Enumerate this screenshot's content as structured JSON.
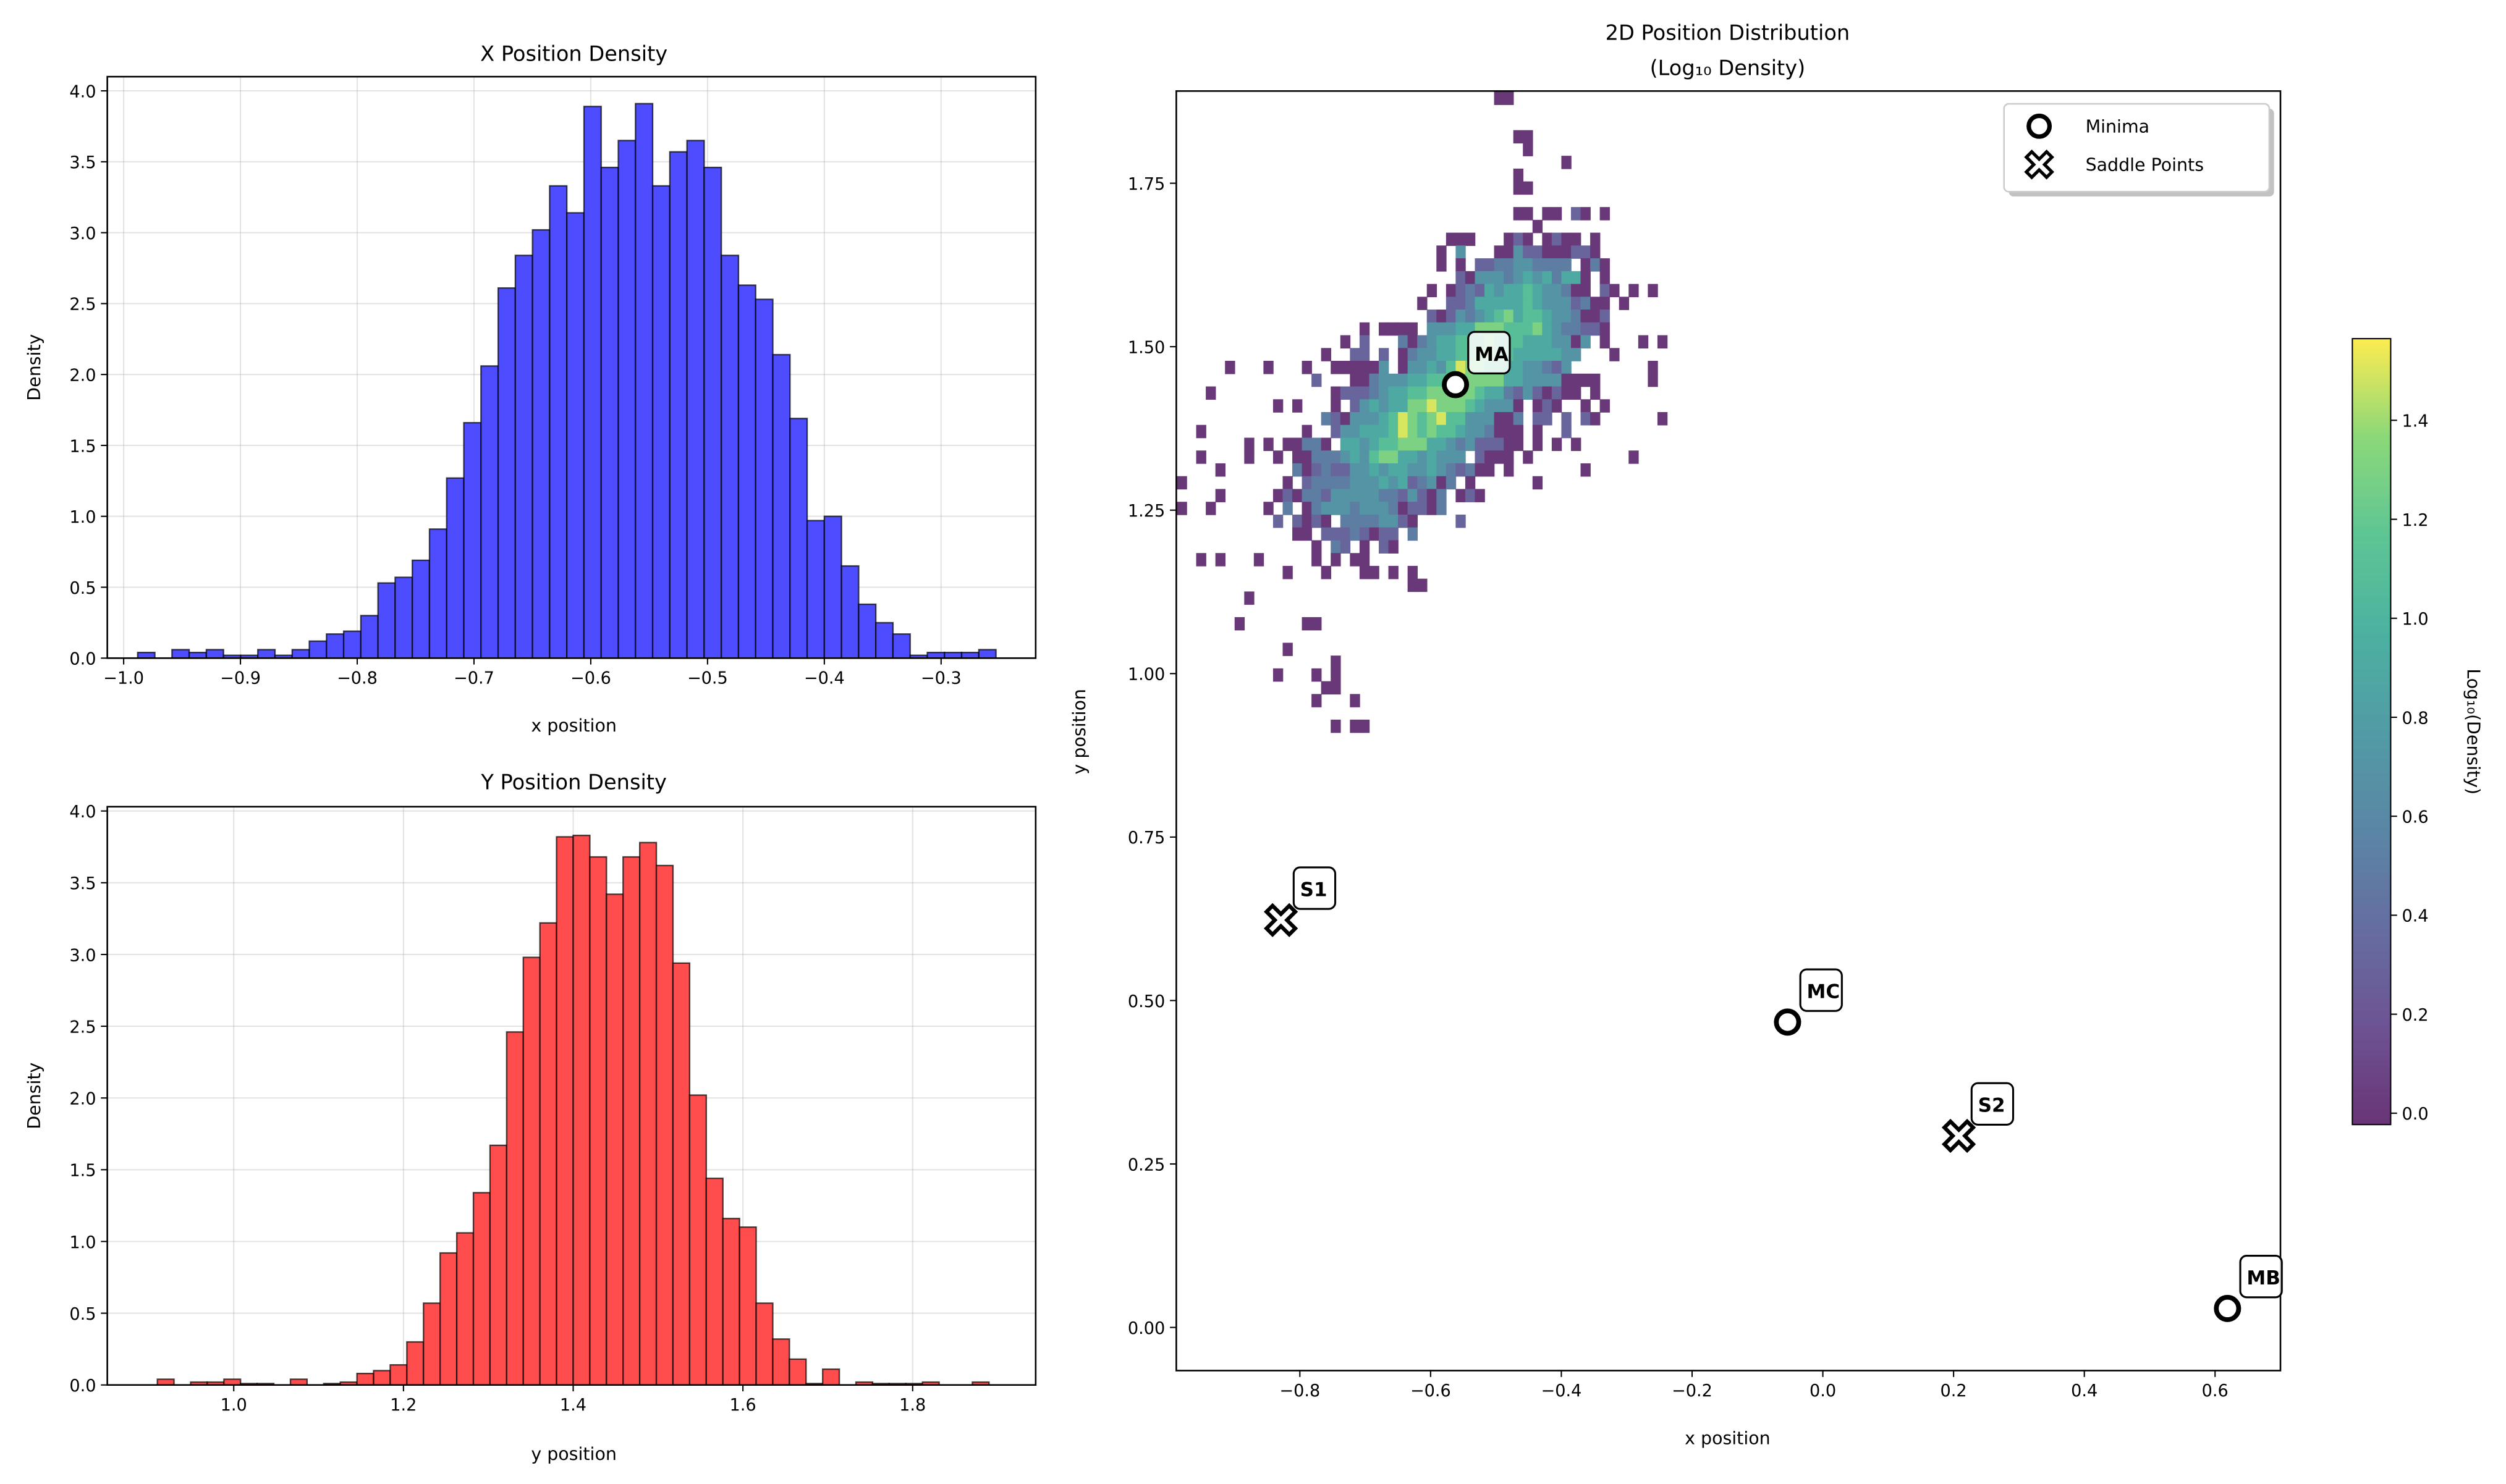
{
  "chart_data": [
    {
      "type": "bar",
      "title": "X Position Density",
      "xlabel": "x position",
      "ylabel": "Density",
      "xlim": [
        -1.014,
        -0.219
      ],
      "ylim": [
        0,
        4.1
      ],
      "grid": true,
      "color": "#0000ff",
      "bin_range": [
        -0.988,
        -0.253
      ],
      "values": [
        0.04,
        0,
        0.06,
        0.04,
        0.06,
        0.02,
        0.02,
        0.06,
        0.02,
        0.06,
        0.12,
        0.17,
        0.19,
        0.3,
        0.53,
        0.57,
        0.69,
        0.91,
        1.27,
        1.66,
        2.06,
        2.61,
        2.84,
        3.02,
        3.33,
        3.14,
        3.89,
        3.46,
        3.65,
        3.91,
        3.33,
        3.57,
        3.65,
        3.46,
        2.84,
        2.63,
        2.53,
        2.14,
        1.69,
        0.97,
        1.0,
        0.65,
        0.38,
        0.25,
        0.17,
        0.02,
        0.04,
        0.04,
        0.04,
        0.06
      ],
      "xticks": [
        -1.0,
        -0.9,
        -0.8,
        -0.7,
        -0.6,
        -0.5,
        -0.4,
        -0.3
      ],
      "xtick_labels": [
        "−1.0",
        "−0.9",
        "−0.8",
        "−0.7",
        "−0.6",
        "−0.5",
        "−0.4",
        "−0.3"
      ],
      "yticks": [
        0,
        0.5,
        1,
        1.5,
        2,
        2.5,
        3,
        3.5,
        4
      ],
      "ytick_labels": [
        "0.0",
        "0.5",
        "1.0",
        "1.5",
        "2.0",
        "2.5",
        "3.0",
        "3.5",
        "4.0"
      ]
    },
    {
      "type": "bar",
      "title": "Y Position Density",
      "xlabel": "y position",
      "ylabel": "Density",
      "xlim": [
        0.851,
        1.945
      ],
      "ylim": [
        0,
        4.03
      ],
      "grid": true,
      "color": "#ff0000",
      "bin_range": [
        0.91,
        1.89
      ],
      "values": [
        0.04,
        0,
        0.02,
        0.02,
        0.04,
        0.01,
        0.01,
        0,
        0.04,
        0,
        0.01,
        0.02,
        0.08,
        0.1,
        0.14,
        0.3,
        0.57,
        0.92,
        1.06,
        1.34,
        1.67,
        2.46,
        2.98,
        3.22,
        3.82,
        3.83,
        3.68,
        3.42,
        3.68,
        3.78,
        3.62,
        2.94,
        2.02,
        1.44,
        1.16,
        1.1,
        0.57,
        0.32,
        0.18,
        0.01,
        0.11,
        0,
        0.02,
        0.01,
        0.01,
        0.01,
        0.02,
        0,
        0,
        0.02
      ],
      "xticks": [
        1.0,
        1.2,
        1.4,
        1.6,
        1.8
      ],
      "xtick_labels": [
        "1.0",
        "1.2",
        "1.4",
        "1.6",
        "1.8"
      ],
      "yticks": [
        0,
        0.5,
        1,
        1.5,
        2,
        2.5,
        3,
        3.5,
        4
      ],
      "ytick_labels": [
        "0.0",
        "0.5",
        "1.0",
        "1.5",
        "2.0",
        "2.5",
        "3.0",
        "3.5",
        "4.0"
      ]
    },
    {
      "type": "heatmap",
      "title": "2D Position Distribution",
      "subtitle": "(Log₁₀ Density)",
      "xlabel": "x position",
      "ylabel": "y position",
      "xlim": [
        -0.989,
        0.7
      ],
      "ylim": [
        -0.066,
        1.891
      ],
      "grid": false,
      "colormap": "viridis",
      "x_range": [
        -0.988,
        -0.253
      ],
      "y_range": [
        0.91,
        1.89
      ],
      "bins": [
        50,
        50
      ],
      "z_levels": {
        "1": 0.0,
        "2": 0.3,
        "3": 0.5,
        "4": 0.7,
        "5": 0.9,
        "6": 1.1,
        "7": 1.3,
        "8": 1.5
      },
      "rows_top_to_bottom": [
        ".................................11",
        "",
        "",
        "...................................11",
        "....................................1",
        "........................................1",
        "...................................1",
        "...................................11",
        "",
        "...................................11.11.21.1",
        ".....................................1",
        "............................111...121.1211.1",
        "...........................1.4...11422111221",
        "...........................1.1.2233443333.131",
        ".............................21444345453551.1",
        "..........................1.123254556544311 21.1.1",
        ".........................1..22355555654442311.1",
        "..........................2124345675665443112",
        "...................1.1111.4445577766675433221",
        ".................1.2...31345566676665554414 1...1.1",
        "...............1..22.2.1344556677665555544...1",
        ".....1...1...1..111114.144546877665544324........1",
        "..............2...11344455667777775544441111.....1",
        "...1............12223455667777765532421211.1",
        "..........1.1...1.245455778777654441.121..1.1",
        "...............321444568767866444113 22.2.21......1",
        "..1..........1..24455568767665443111.1..2",
        ".......1.1.11331.5545667775543422211 1.1.1",
        "..1....1..1.113334546775545444 2111.1..........1",
        "....1.......312322445455445432311.1.......1",
        "1..........1.2333344454523413.1......1",
        "....1.....121332444443324213.121",
        "1..1.....1.3.134443444312213",
        "..........2.2121.33334421....2",
        "............11.22232122.3",
        "..............1.32.1.21",
        "..1.1...1.....1.1.11",
        "...........1...1...11.1.1",
        "........................11",
        ".......1",
        "",
        "......1......11",
        "",
        "...........1",
        "................1",
        "..........1...1.1",
        "...............11",
        "..............1...1",
        "",
        "................1.11"
      ],
      "colorbar": {
        "label": "Log₁₀(Density)",
        "range": [
          -0.023,
          1.565
        ],
        "ticks": [
          0,
          0.2,
          0.4,
          0.6,
          0.8,
          1.0,
          1.2,
          1.4
        ],
        "tick_labels": [
          "0.0",
          "0.2",
          "0.4",
          "0.6",
          "0.8",
          "1.0",
          "1.2",
          "1.4"
        ]
      },
      "xticks": [
        -0.8,
        -0.6,
        -0.4,
        -0.2,
        0,
        0.2,
        0.4,
        0.6
      ],
      "xtick_labels": [
        "−0.8",
        "−0.6",
        "−0.4",
        "−0.2",
        "0.0",
        "0.2",
        "0.4",
        "0.6"
      ],
      "yticks": [
        0,
        0.25,
        0.5,
        0.75,
        1.0,
        1.25,
        1.5,
        1.75
      ],
      "ytick_labels": [
        "0.00",
        "0.25",
        "0.50",
        "0.75",
        "1.00",
        "1.25",
        "1.50",
        "1.75"
      ],
      "points": [
        {
          "label": "MA",
          "kind": "minima",
          "x": -0.562,
          "y": 1.442
        },
        {
          "label": "MB",
          "kind": "minima",
          "x": 0.619,
          "y": 0.029
        },
        {
          "label": "MC",
          "kind": "minima",
          "x": -0.054,
          "y": 0.467
        },
        {
          "label": "S1",
          "kind": "saddle",
          "x": -0.829,
          "y": 0.623
        },
        {
          "label": "S2",
          "kind": "saddle",
          "x": 0.208,
          "y": 0.293
        }
      ],
      "legend": {
        "position": "top-right",
        "entries": [
          {
            "label": "Minima",
            "marker": "circle"
          },
          {
            "label": "Saddle Points",
            "marker": "x"
          }
        ]
      }
    }
  ]
}
